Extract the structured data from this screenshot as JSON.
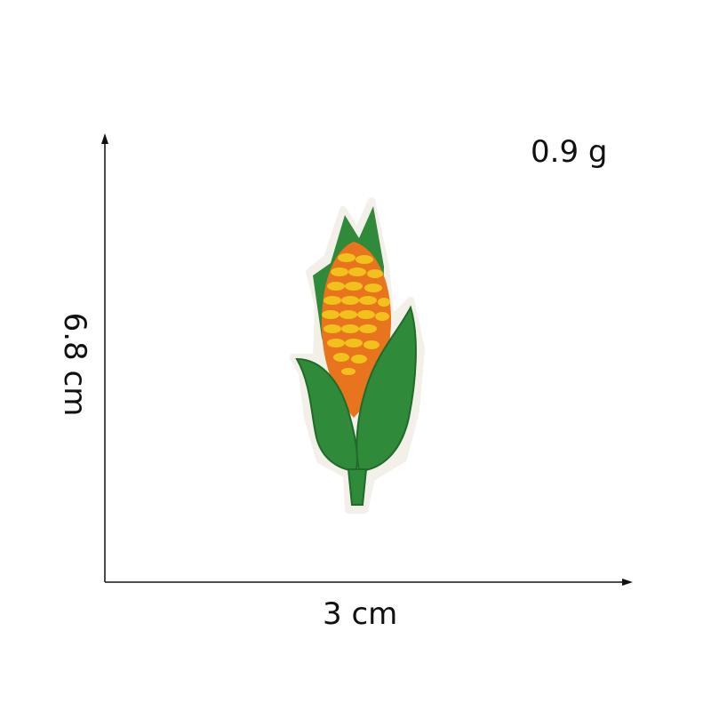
{
  "measurements": {
    "weight": "0.9 g",
    "width": "3 cm",
    "height": "6.8 cm"
  },
  "product": {
    "icon": "corn-patch-icon",
    "colors": {
      "husk": "#2f8a3a",
      "husk_dark": "#1f6b2a",
      "kernel_yellow": "#f2c21c",
      "kernel_orange": "#e8741e",
      "outline_white": "#f3f0ea"
    }
  },
  "axes": {
    "color": "#111111"
  }
}
